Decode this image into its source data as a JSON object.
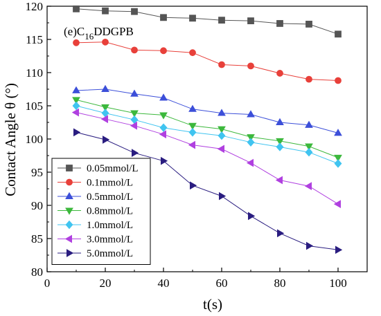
{
  "chart_data": {
    "type": "line",
    "annotation": {
      "prefix": "(e)C",
      "subscript": "16",
      "suffix": "DDGPB"
    },
    "xlabel": "t(s)",
    "ylabel": "Contact Angle θ (°)",
    "xlim": [
      0,
      110
    ],
    "ylim": [
      80,
      120
    ],
    "xticks": [
      0,
      20,
      40,
      60,
      80,
      100
    ],
    "yticks": [
      80,
      85,
      90,
      95,
      100,
      105,
      110,
      115,
      120
    ],
    "grid": false,
    "legend_position": "bottom-left",
    "x": [
      10,
      20,
      30,
      40,
      50,
      60,
      70,
      80,
      90,
      100
    ],
    "series": [
      {
        "name": "0.05mmol/L",
        "marker": "square",
        "color": "#555555",
        "values": [
          119.6,
          119.3,
          119.2,
          118.3,
          118.2,
          117.9,
          117.8,
          117.4,
          117.3,
          115.8
        ]
      },
      {
        "name": "0.1mmol/L",
        "marker": "circle",
        "color": "#e8403a",
        "values": [
          114.5,
          114.6,
          113.4,
          113.3,
          113.0,
          111.2,
          111.0,
          109.9,
          109.0,
          108.8
        ]
      },
      {
        "name": "0.5mmol/L",
        "marker": "triangle-up",
        "color": "#3c4fd9",
        "values": [
          107.3,
          107.5,
          106.8,
          106.2,
          104.5,
          103.9,
          103.7,
          102.5,
          102.1,
          100.9
        ]
      },
      {
        "name": "0.8mmol/L",
        "marker": "triangle-down",
        "color": "#3cb83c",
        "values": [
          105.9,
          104.8,
          103.9,
          103.6,
          102.0,
          101.5,
          100.3,
          99.7,
          98.9,
          97.2
        ]
      },
      {
        "name": "1.0mmol/L",
        "marker": "diamond",
        "color": "#40c4f0",
        "values": [
          105.0,
          103.9,
          102.9,
          101.7,
          101.0,
          100.5,
          99.5,
          98.8,
          98.0,
          96.3
        ]
      },
      {
        "name": "3.0mmol/L",
        "marker": "triangle-left",
        "color": "#b040e0",
        "values": [
          104.0,
          103.0,
          102.0,
          100.7,
          99.1,
          98.5,
          96.4,
          93.8,
          92.9,
          90.2
        ]
      },
      {
        "name": "5.0mmol/L",
        "marker": "triangle-right",
        "color": "#2a1d80",
        "values": [
          101.0,
          99.9,
          97.9,
          96.7,
          93.0,
          91.4,
          88.4,
          85.8,
          83.9,
          83.3
        ]
      }
    ]
  }
}
